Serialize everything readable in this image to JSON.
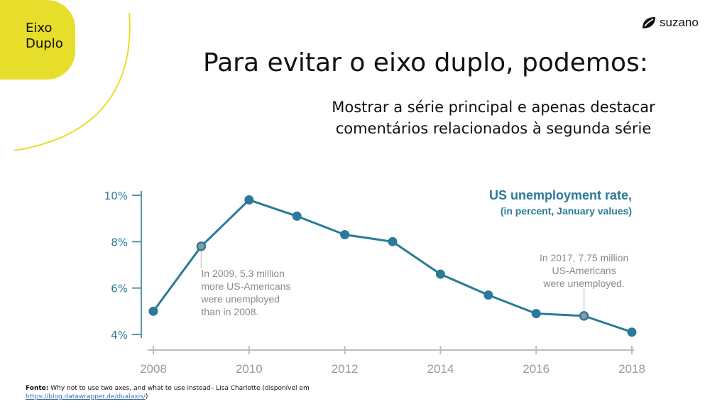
{
  "section_tag": {
    "line1": "Eixo",
    "line2": "Duplo"
  },
  "brand": {
    "name": "suzano",
    "icon": "leaf-logo-icon"
  },
  "title": "Para evitar o eixo duplo, podemos:",
  "subtitle": {
    "line1": "Mostrar a série principal e apenas destacar",
    "line2": "comentários relacionados à segunda série"
  },
  "colors": {
    "accent_yellow": "#e6de2a",
    "series": "#2a7a98",
    "annotation": "#8a8a8a",
    "axis": "#5d95ab"
  },
  "chart_data": {
    "type": "line",
    "title": "US unemployment rate,",
    "subtitle": "(in percent, January values)",
    "x": [
      2008,
      2009,
      2010,
      2011,
      2012,
      2013,
      2014,
      2015,
      2016,
      2017,
      2018
    ],
    "series": [
      {
        "values": [
          5.0,
          7.8,
          9.8,
          9.1,
          8.3,
          8.0,
          6.6,
          5.7,
          4.9,
          4.8,
          4.1
        ]
      }
    ],
    "highlighted": [
      2009,
      2017
    ],
    "xticks": [
      "2008",
      "2010",
      "2012",
      "2014",
      "2016",
      "2018"
    ],
    "yticks": [
      "4%",
      "6%",
      "8%",
      "10%"
    ],
    "ylim": [
      4,
      10
    ],
    "xlim": [
      2008,
      2018
    ],
    "grid": false,
    "annotations": [
      {
        "x": 2009,
        "lines": [
          "In 2009, 5.3 million",
          "more US-Americans",
          "were unemployed",
          "than in 2008."
        ]
      },
      {
        "x": 2017,
        "lines": [
          "In 2017, 7.75 million",
          "US-Americans",
          "were unemployed."
        ]
      }
    ]
  },
  "source": {
    "label": "Fonte:",
    "text": " Why not to use two axes, and what to use instead– Lisa Charlotte (disponível em",
    "link": "https://blog.datawrapper.de/dualaxis/",
    "close": ")"
  }
}
